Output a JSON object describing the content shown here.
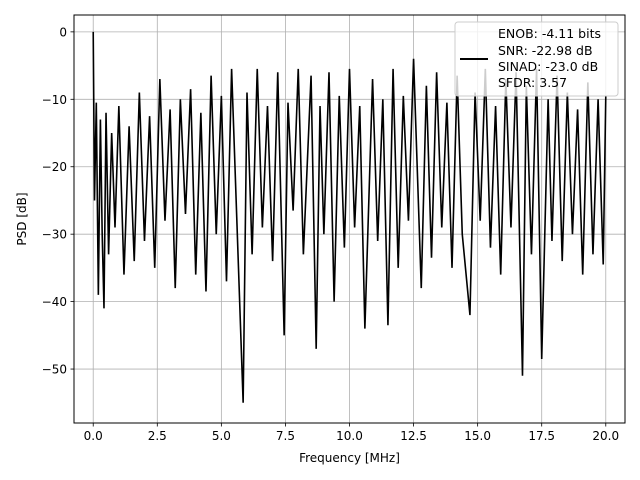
{
  "chart_data": {
    "type": "line",
    "xlabel": "Frequency [MHz]",
    "ylabel": "PSD [dB]",
    "xlim": [
      -0.75,
      20.75
    ],
    "ylim": [
      -58,
      2.5
    ],
    "xticks": [
      0.0,
      2.5,
      5.0,
      7.5,
      10.0,
      12.5,
      15.0,
      17.5,
      20.0
    ],
    "xtick_labels": [
      "0.0",
      "2.5",
      "5.0",
      "7.5",
      "10.0",
      "12.5",
      "15.0",
      "17.5",
      "20.0"
    ],
    "yticks": [
      0,
      -10,
      -20,
      -30,
      -40,
      -50
    ],
    "ytick_labels": [
      "0",
      "−10",
      "−20",
      "−30",
      "−40",
      "−50"
    ],
    "grid": true,
    "legend_position": "top-right",
    "legend": [
      "ENOB: -4.11 bits",
      "SNR: -22.98 dB",
      "SINAD: -23.0 dB",
      "SFDR: 3.57"
    ],
    "series": [
      {
        "color": "#000000",
        "x": [
          0.0,
          0.05,
          0.12,
          0.2,
          0.28,
          0.35,
          0.42,
          0.5,
          0.6,
          0.72,
          0.85,
          1.0,
          1.2,
          1.4,
          1.6,
          1.8,
          2.0,
          2.2,
          2.4,
          2.6,
          2.8,
          3.0,
          3.2,
          3.4,
          3.6,
          3.8,
          4.0,
          4.2,
          4.4,
          4.6,
          4.8,
          5.0,
          5.2,
          5.4,
          5.6,
          5.85,
          6.0,
          6.2,
          6.4,
          6.6,
          6.8,
          7.0,
          7.2,
          7.45,
          7.6,
          7.8,
          8.0,
          8.2,
          8.5,
          8.7,
          8.85,
          9.0,
          9.2,
          9.4,
          9.6,
          9.8,
          10.0,
          10.2,
          10.4,
          10.6,
          10.9,
          11.1,
          11.3,
          11.5,
          11.7,
          11.9,
          12.1,
          12.3,
          12.5,
          12.8,
          13.0,
          13.2,
          13.4,
          13.6,
          13.8,
          14.0,
          14.2,
          14.4,
          14.7,
          14.9,
          15.1,
          15.3,
          15.5,
          15.7,
          15.9,
          16.1,
          16.3,
          16.5,
          16.75,
          16.9,
          17.1,
          17.3,
          17.5,
          17.75,
          17.9,
          18.1,
          18.3,
          18.5,
          18.7,
          18.9,
          19.1,
          19.3,
          19.5,
          19.7,
          19.9,
          20.0
        ],
        "y": [
          0.0,
          -25.0,
          -10.5,
          -39.0,
          -13.0,
          -30.0,
          -41.0,
          -12.0,
          -33.0,
          -15.0,
          -29.0,
          -11.0,
          -36.0,
          -14.0,
          -34.0,
          -9.0,
          -31.0,
          -12.5,
          -35.0,
          -7.0,
          -28.0,
          -11.5,
          -38.0,
          -10.0,
          -27.0,
          -8.5,
          -36.0,
          -12.0,
          -38.5,
          -6.5,
          -30.0,
          -9.5,
          -37.0,
          -5.5,
          -27.5,
          -55.0,
          -9.0,
          -33.0,
          -5.5,
          -29.0,
          -11.0,
          -34.0,
          -6.0,
          -45.0,
          -10.5,
          -26.5,
          -5.5,
          -33.0,
          -6.5,
          -47.0,
          -11.0,
          -30.0,
          -6.0,
          -40.0,
          -9.5,
          -32.0,
          -5.5,
          -29.0,
          -11.0,
          -44.0,
          -7.0,
          -31.0,
          -10.0,
          -43.5,
          -5.5,
          -35.0,
          -9.5,
          -28.0,
          -4.0,
          -38.0,
          -8.0,
          -33.5,
          -6.0,
          -29.0,
          -10.5,
          -35.0,
          -6.5,
          -30.0,
          -42.0,
          -9.0,
          -28.0,
          -5.5,
          -32.0,
          -11.0,
          -36.0,
          -7.0,
          -29.0,
          -6.0,
          -51.0,
          -8.0,
          -33.0,
          -5.5,
          -48.5,
          -10.0,
          -31.0,
          -6.5,
          -34.0,
          -9.0,
          -30.0,
          -11.5,
          -36.0,
          -7.5,
          -33.0,
          -10.0,
          -34.5,
          -9.5
        ]
      }
    ]
  }
}
